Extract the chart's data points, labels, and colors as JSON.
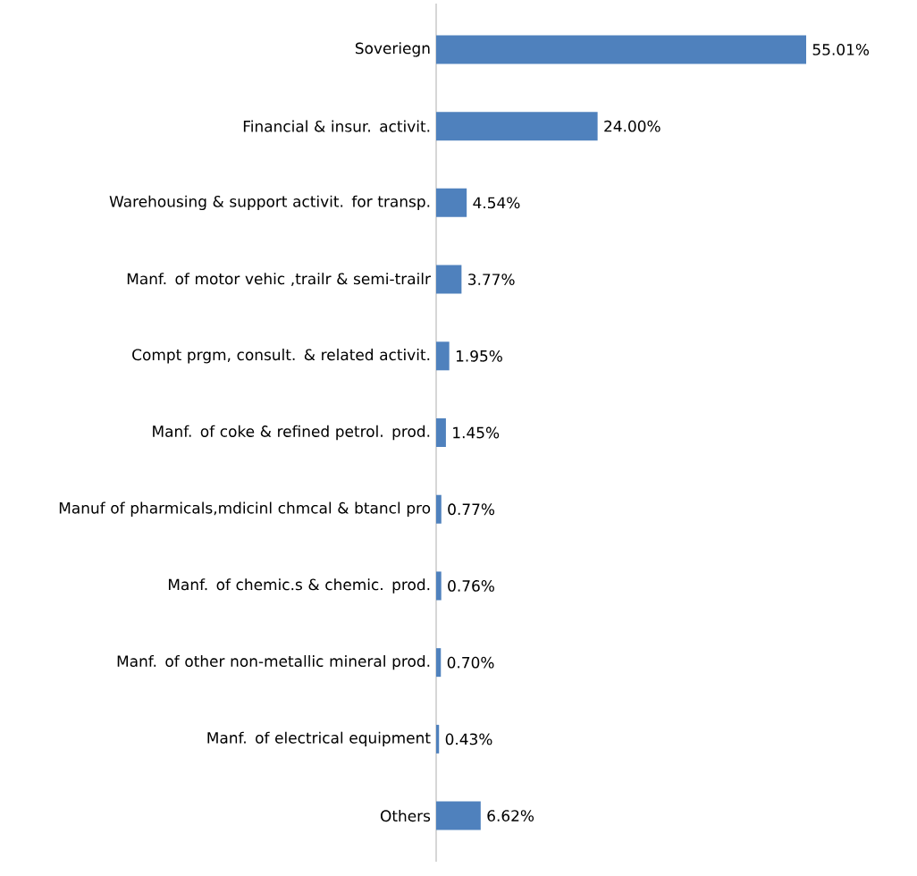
{
  "chart_data": {
    "type": "bar",
    "orientation": "horizontal",
    "color": "#4f81bd",
    "tick_labels": "y",
    "categories": [
      "Soveriegn",
      "Financial & insur. activit.",
      "Warehousing & support activit. for transp.",
      "Manf. of motor vehic ,trailr & semi-trailr",
      "Compt prgm, consult. & related activit.",
      "Manf. of coke & refined petrol. prod.",
      "Manuf of pharmicals,mdicinl chmcal & btancl pro",
      "Manf. of chemic.s & chemic. prod.",
      "Manf. of other non-metallic mineral prod.",
      "Manf. of electrical equipment",
      "Others"
    ],
    "values": [
      55.01,
      24.0,
      4.54,
      3.77,
      1.95,
      1.45,
      0.77,
      0.76,
      0.7,
      0.43,
      6.62
    ],
    "value_labels": [
      "55.01%",
      "24.00%",
      "4.54%",
      "3.77%",
      "1.95%",
      "1.45%",
      "0.77%",
      "0.76%",
      "0.70%",
      "0.43%",
      "6.62%"
    ]
  }
}
